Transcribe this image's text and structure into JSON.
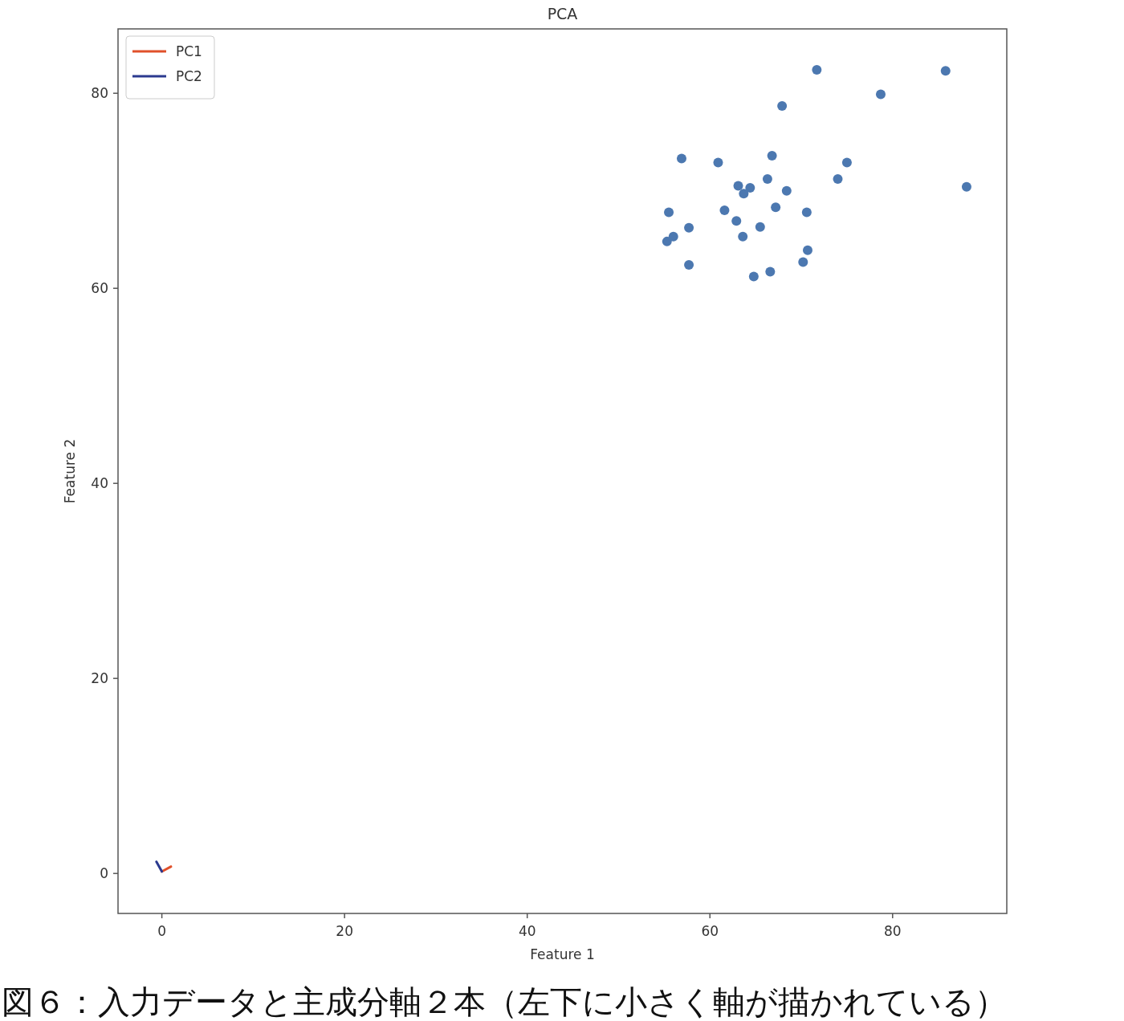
{
  "chart_data": {
    "type": "scatter",
    "title": "PCA",
    "xlabel": "Feature 1",
    "ylabel": "Feature 2",
    "annotations": [
      "図６：入力データと主成分軸２本（左下に小さく軸が描かれている）"
    ],
    "xlim": [
      -4.8,
      92.5
    ],
    "ylim": [
      -4.1,
      86.6
    ],
    "xticks": [
      0,
      20,
      40,
      60,
      80
    ],
    "yticks": [
      0,
      20,
      40,
      60,
      80
    ],
    "grid": false,
    "legend": "top left",
    "series": [
      {
        "marker": "circle",
        "color": "#4c78b0",
        "x": [
          71.7,
          85.8,
          78.7,
          67.9,
          56.9,
          60.9,
          66.8,
          75.0,
          74.0,
          66.3,
          88.1,
          63.1,
          64.4,
          63.7,
          68.4,
          55.5,
          61.6,
          67.2,
          70.6,
          62.9,
          57.7,
          65.5,
          63.6,
          56.0,
          55.3,
          70.7,
          70.2,
          57.7,
          66.6,
          64.8
        ],
        "values": [
          82.4,
          82.3,
          79.9,
          78.7,
          73.3,
          72.9,
          73.6,
          72.9,
          71.2,
          71.2,
          70.4,
          70.5,
          70.3,
          69.7,
          70.0,
          67.8,
          68.0,
          68.3,
          67.8,
          66.9,
          66.2,
          66.3,
          65.3,
          65.3,
          64.8,
          63.9,
          62.7,
          62.4,
          61.7,
          61.2
        ]
      },
      {
        "type": "line",
        "name": "PC1",
        "color": "#e0502a",
        "line_style": "solid",
        "x": [
          0,
          1.0
        ],
        "values": [
          0.2,
          0.7
        ]
      },
      {
        "type": "line",
        "name": "PC2",
        "color": "#2b3a8f",
        "line_style": "solid",
        "x": [
          0,
          -0.6
        ],
        "values": [
          0.2,
          1.2
        ]
      }
    ]
  }
}
